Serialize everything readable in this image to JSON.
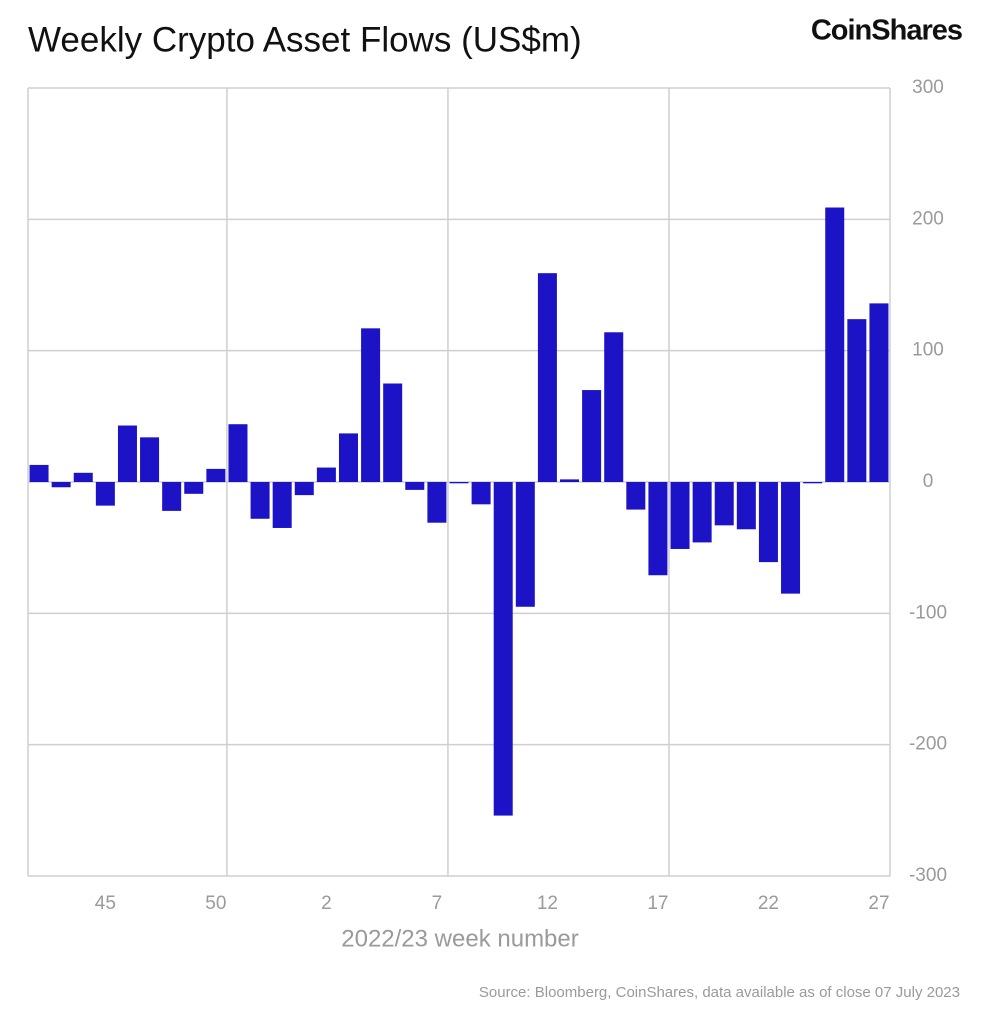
{
  "chart_data": {
    "type": "bar",
    "title": "Weekly Crypto Asset Flows (US$m)",
    "brand": "CoinShares",
    "x_label": "2022/23 week number",
    "source": "Source: Bloomberg, CoinShares, data available as of close 07 July 2023",
    "categories": [
      null,
      null,
      null,
      "45",
      null,
      null,
      null,
      null,
      "50",
      null,
      null,
      null,
      null,
      "2",
      null,
      null,
      null,
      null,
      "7",
      null,
      null,
      null,
      null,
      "12",
      null,
      null,
      null,
      null,
      "17",
      null,
      null,
      null,
      null,
      "22",
      null,
      null,
      null,
      null,
      "27"
    ],
    "values": [
      13,
      -4,
      7,
      -18,
      43,
      34,
      -22,
      -9,
      10,
      44,
      -28,
      -35,
      -10,
      11,
      37,
      117,
      75,
      -6,
      -31,
      -1,
      -17,
      -254,
      -95,
      159,
      2,
      70,
      114,
      -21,
      -71,
      -51,
      -46,
      -33,
      -36,
      -61,
      -85,
      -1,
      209,
      124,
      136
    ],
    "color": "#1c13c6",
    "ylim": [
      -300,
      300
    ],
    "yticks": [
      -300,
      -200,
      -100,
      0,
      100,
      200,
      300
    ],
    "grid": true
  }
}
